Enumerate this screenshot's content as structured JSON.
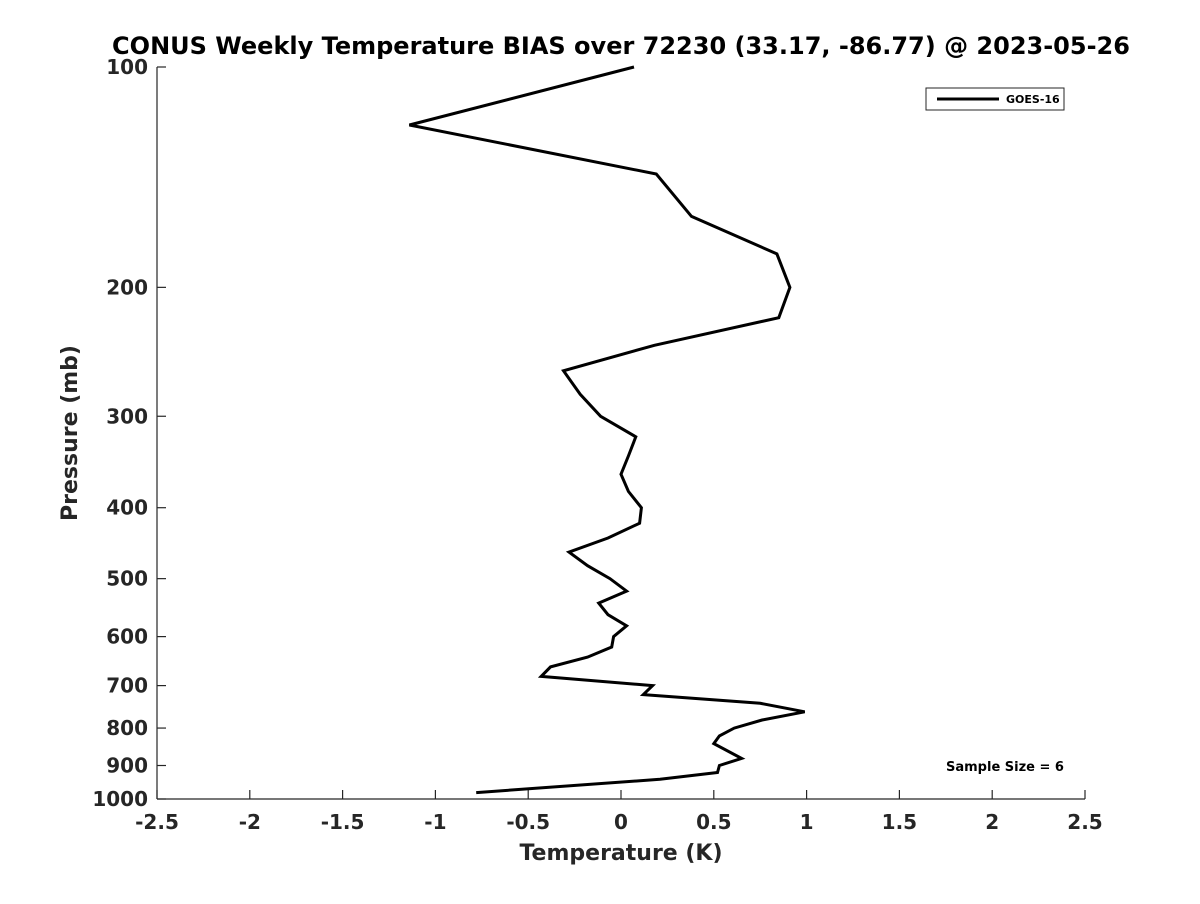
{
  "chart_data": {
    "type": "line",
    "title": "CONUS Weekly Temperature BIAS over 72230 (33.17, -86.77) @ 2023-05-26",
    "xlabel": "Temperature (K)",
    "ylabel": "Pressure (mb)",
    "xlim": [
      -2.5,
      2.5
    ],
    "ylim": [
      100,
      1000
    ],
    "yscale": "log",
    "y_reversed": true,
    "xticks": [
      -2.5,
      -2,
      -1.5,
      -1,
      -0.5,
      0,
      0.5,
      1,
      1.5,
      2,
      2.5
    ],
    "xtick_labels": [
      "-2.5",
      "-2",
      "-1.5",
      "-1",
      "-0.5",
      "0",
      "0.5",
      "1",
      "1.5",
      "2",
      "2.5"
    ],
    "yticks": [
      100,
      200,
      300,
      400,
      500,
      600,
      700,
      800,
      900,
      1000
    ],
    "ytick_labels": [
      "100",
      "200",
      "300",
      "400",
      "500",
      "600",
      "700",
      "800",
      "900",
      "1000"
    ],
    "grid": false,
    "legend": {
      "placement": "top-right",
      "entries": [
        "GOES-16"
      ]
    },
    "annotation": "Sample Size = 6",
    "series": [
      {
        "name": "GOES-16",
        "color": "#000000",
        "points": [
          {
            "t": 0.07,
            "p": 100
          },
          {
            "t": -1.14,
            "p": 120
          },
          {
            "t": 0.19,
            "p": 140
          },
          {
            "t": 0.38,
            "p": 160
          },
          {
            "t": 0.84,
            "p": 180
          },
          {
            "t": 0.91,
            "p": 200
          },
          {
            "t": 0.85,
            "p": 220
          },
          {
            "t": 0.18,
            "p": 240
          },
          {
            "t": -0.31,
            "p": 260
          },
          {
            "t": -0.22,
            "p": 280
          },
          {
            "t": -0.11,
            "p": 300
          },
          {
            "t": 0.08,
            "p": 320
          },
          {
            "t": 0.04,
            "p": 340
          },
          {
            "t": 0.0,
            "p": 360
          },
          {
            "t": 0.04,
            "p": 380
          },
          {
            "t": 0.11,
            "p": 400
          },
          {
            "t": 0.1,
            "p": 420
          },
          {
            "t": -0.07,
            "p": 440
          },
          {
            "t": -0.28,
            "p": 460
          },
          {
            "t": -0.18,
            "p": 480
          },
          {
            "t": -0.06,
            "p": 500
          },
          {
            "t": 0.03,
            "p": 520
          },
          {
            "t": -0.12,
            "p": 540
          },
          {
            "t": -0.07,
            "p": 560
          },
          {
            "t": 0.03,
            "p": 580
          },
          {
            "t": -0.04,
            "p": 600
          },
          {
            "t": -0.05,
            "p": 620
          },
          {
            "t": -0.18,
            "p": 640
          },
          {
            "t": -0.38,
            "p": 660
          },
          {
            "t": -0.43,
            "p": 680
          },
          {
            "t": 0.17,
            "p": 700
          },
          {
            "t": 0.12,
            "p": 720
          },
          {
            "t": 0.75,
            "p": 740
          },
          {
            "t": 0.99,
            "p": 760
          },
          {
            "t": 0.76,
            "p": 780
          },
          {
            "t": 0.61,
            "p": 800
          },
          {
            "t": 0.53,
            "p": 820
          },
          {
            "t": 0.5,
            "p": 840
          },
          {
            "t": 0.65,
            "p": 880
          },
          {
            "t": 0.53,
            "p": 900
          },
          {
            "t": 0.52,
            "p": 920
          },
          {
            "t": 0.21,
            "p": 940
          },
          {
            "t": -0.78,
            "p": 980
          }
        ]
      }
    ]
  }
}
